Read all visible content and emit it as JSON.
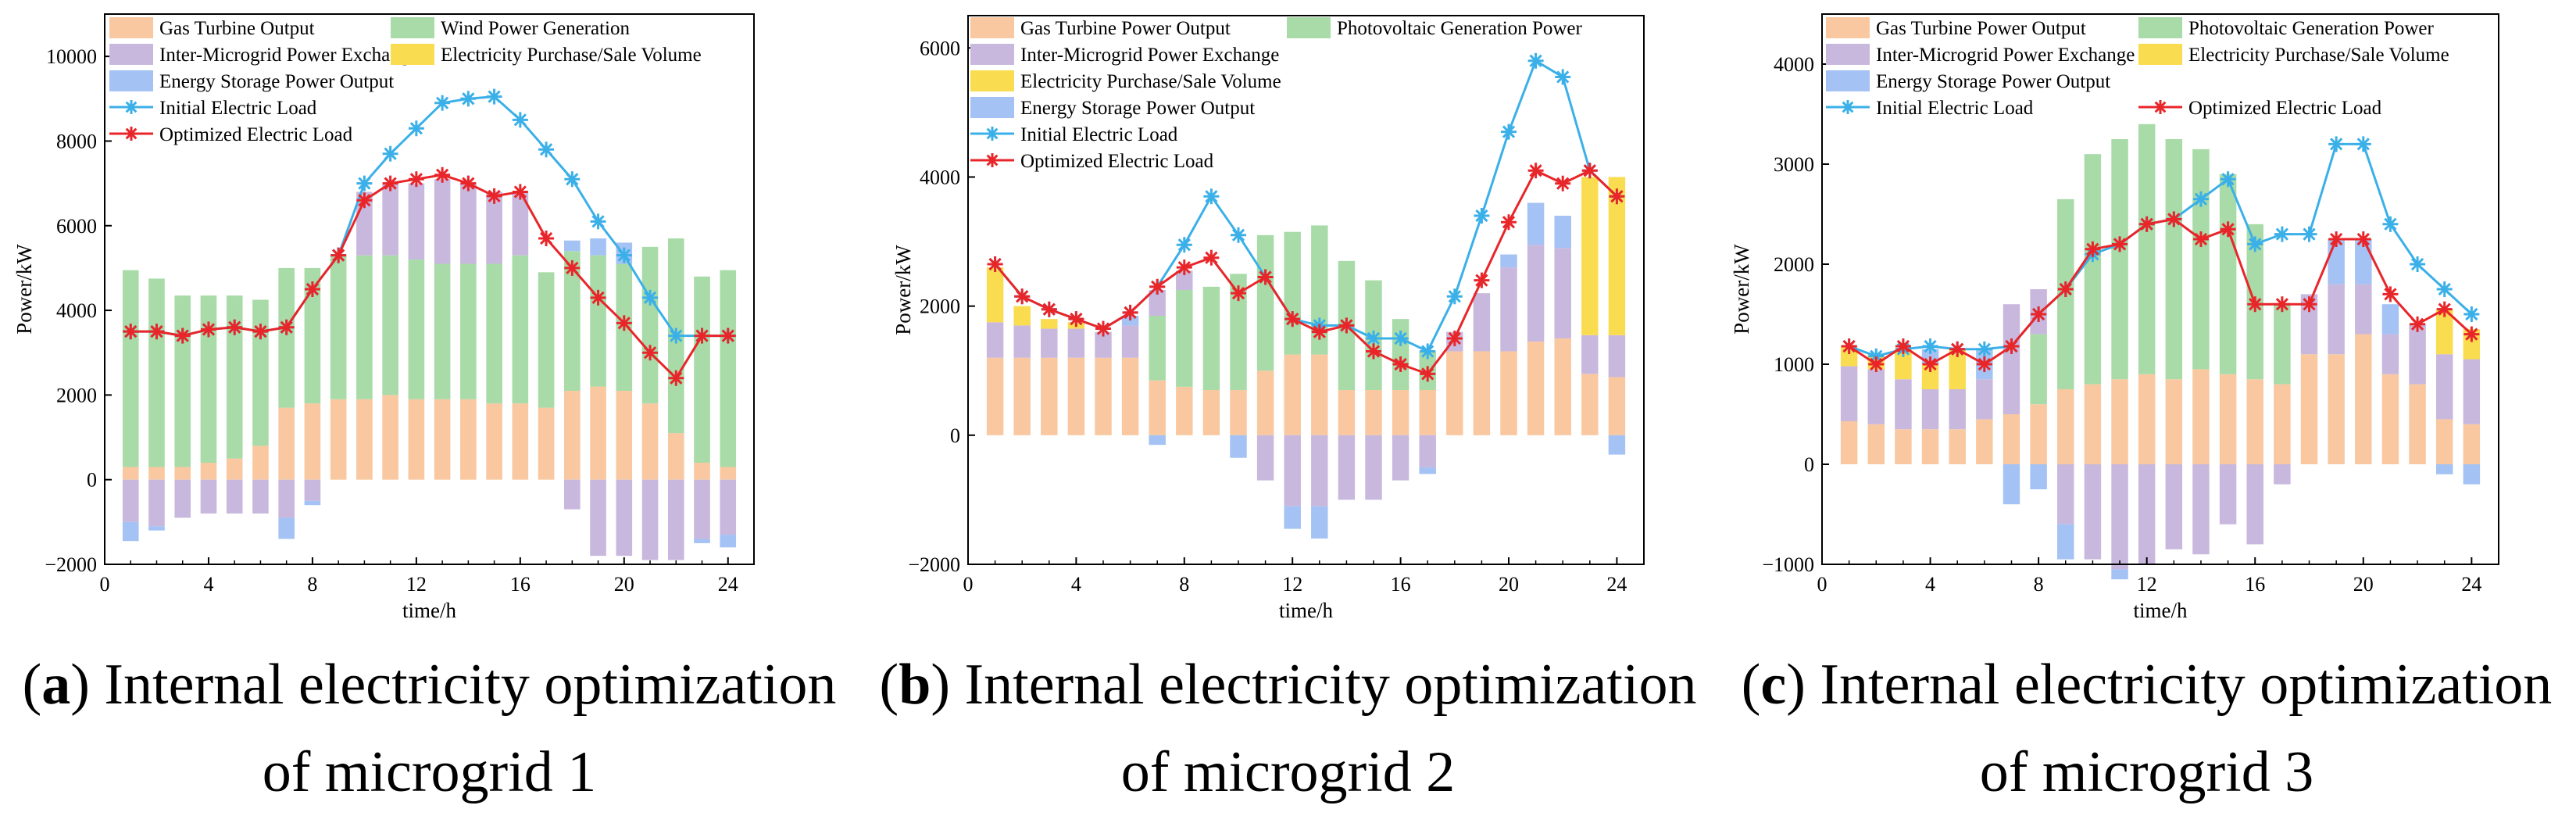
{
  "colors": {
    "gas": "#F9C8A0",
    "renewable": "#A8DBA8",
    "exchange": "#C9B8DD",
    "purchase": "#FADC50",
    "storage": "#A4C2F4",
    "initial_line": "#3BB0E8",
    "optimized_line": "#E8262A"
  },
  "icons": {
    "initial_marker": "asterisk-icon",
    "optimized_marker": "asterisk-icon"
  },
  "chart_data": [
    {
      "type": "bar",
      "stacked": true,
      "caption_letter": "a",
      "caption_text": ") Internal electricity optimization of microgrid 1",
      "xlabel": "time/h",
      "ylabel": "Power/kW",
      "xlim": [
        0,
        25
      ],
      "ylim": [
        -2000,
        11000
      ],
      "xticks": [
        0,
        4,
        8,
        12,
        16,
        20,
        24
      ],
      "yticks": [
        -2000,
        0,
        2000,
        4000,
        6000,
        8000,
        10000
      ],
      "legend_position": "top",
      "legend": [
        {
          "label": "Gas Turbine Output",
          "key": "gas"
        },
        {
          "label": "Wind Power Generation",
          "key": "renewable"
        },
        {
          "label": "Inter-Microgrid Power Exchange",
          "key": "exchange"
        },
        {
          "label": "Electricity Purchase/Sale Volume",
          "key": "purchase"
        },
        {
          "label": "Energy Storage Power Output",
          "key": "storage"
        },
        {
          "label": "Initial Electric Load",
          "key": "initial_line"
        },
        {
          "label": "Optimized Electric Load",
          "key": "optimized_line"
        }
      ],
      "x": [
        1,
        2,
        3,
        4,
        5,
        6,
        7,
        8,
        9,
        10,
        11,
        12,
        13,
        14,
        15,
        16,
        17,
        18,
        19,
        20,
        21,
        22,
        23,
        24
      ],
      "series": [
        {
          "name": "Gas Turbine Output",
          "key": "gas",
          "values": [
            300,
            300,
            300,
            400,
            500,
            800,
            1700,
            1800,
            1900,
            1900,
            2000,
            1900,
            1900,
            1900,
            1800,
            1800,
            1700,
            2100,
            2200,
            2100,
            1800,
            1100,
            400,
            300
          ]
        },
        {
          "name": "Wind Power Generation",
          "key": "renewable",
          "values": [
            4650,
            4450,
            4050,
            3950,
            3850,
            3450,
            3300,
            3200,
            3400,
            3400,
            3300,
            3300,
            3200,
            3200,
            3300,
            3500,
            3200,
            3300,
            3100,
            3000,
            3700,
            4600,
            4400,
            4650
          ]
        },
        {
          "name": "Inter-Microgrid Power Exchange",
          "key": "exchange",
          "values": [
            -1000,
            -1100,
            -900,
            -800,
            -800,
            -800,
            -900,
            -500,
            0,
            1500,
            1700,
            1800,
            2000,
            1900,
            1700,
            1500,
            0,
            -700,
            -1800,
            -1800,
            -1900,
            -1900,
            -1400,
            -1300
          ]
        },
        {
          "name": "Electricity Purchase/Sale Volume",
          "key": "purchase",
          "values": [
            0,
            0,
            0,
            0,
            0,
            0,
            0,
            0,
            0,
            0,
            0,
            0,
            0,
            0,
            0,
            0,
            0,
            0,
            0,
            0,
            0,
            0,
            0,
            0
          ]
        },
        {
          "name": "Energy Storage Power Output",
          "key": "storage",
          "values": [
            -450,
            -100,
            0,
            0,
            0,
            0,
            -500,
            -100,
            0,
            0,
            0,
            0,
            0,
            0,
            0,
            0,
            0,
            250,
            400,
            500,
            0,
            0,
            -100,
            -300
          ]
        }
      ],
      "lines": [
        {
          "name": "Initial Electric Load",
          "key": "initial_line",
          "values": [
            3500,
            3500,
            3400,
            3550,
            3600,
            3500,
            3600,
            4500,
            5300,
            7000,
            7700,
            8300,
            8900,
            9000,
            9050,
            8500,
            7800,
            7100,
            6100,
            5300,
            4300,
            3400,
            3400,
            3400
          ]
        },
        {
          "name": "Optimized Electric Load",
          "key": "optimized_line",
          "values": [
            3500,
            3500,
            3400,
            3550,
            3600,
            3500,
            3600,
            4500,
            5300,
            6600,
            7000,
            7100,
            7200,
            7000,
            6700,
            6800,
            5700,
            5000,
            4300,
            3700,
            3000,
            2400,
            3400,
            3400
          ]
        }
      ]
    },
    {
      "type": "bar",
      "stacked": true,
      "caption_letter": "b",
      "caption_text": ") Internal electricity optimization of microgrid 2",
      "xlabel": "time/h",
      "ylabel": "Power/kW",
      "xlim": [
        0,
        25
      ],
      "ylim": [
        -2000,
        6500
      ],
      "xticks": [
        0,
        4,
        8,
        12,
        16,
        20,
        24
      ],
      "yticks": [
        -2000,
        0,
        2000,
        4000,
        6000
      ],
      "legend_position": "top",
      "legend": [
        {
          "label": "Gas Turbine Power Output",
          "key": "gas"
        },
        {
          "label": "Photovoltaic Generation Power",
          "key": "renewable"
        },
        {
          "label": "Inter-Microgrid Power Exchange",
          "key": "exchange"
        },
        {
          "label": "Electricity Purchase/Sale Volume",
          "key": "purchase"
        },
        {
          "label": "Energy Storage Power Output",
          "key": "storage"
        },
        {
          "label": "Initial Electric Load",
          "key": "initial_line"
        },
        {
          "label": "Optimized Electric Load",
          "key": "optimized_line"
        }
      ],
      "x": [
        1,
        2,
        3,
        4,
        5,
        6,
        7,
        8,
        9,
        10,
        11,
        12,
        13,
        14,
        15,
        16,
        17,
        18,
        19,
        20,
        21,
        22,
        23,
        24
      ],
      "series": [
        {
          "name": "Gas Turbine Power Output",
          "key": "gas",
          "values": [
            1200,
            1200,
            1200,
            1200,
            1200,
            1200,
            850,
            750,
            700,
            700,
            1000,
            1250,
            1250,
            700,
            700,
            700,
            700,
            1300,
            1300,
            1300,
            1450,
            1500,
            950,
            900
          ]
        },
        {
          "name": "Photovoltaic Generation Power",
          "key": "renewable",
          "values": [
            0,
            0,
            0,
            0,
            0,
            0,
            1000,
            1500,
            1600,
            1800,
            2100,
            1900,
            2000,
            2000,
            1700,
            1100,
            600,
            0,
            0,
            0,
            0,
            0,
            0,
            0
          ]
        },
        {
          "name": "Inter-Microgrid Power Exchange",
          "key": "exchange",
          "values": [
            550,
            500,
            450,
            450,
            400,
            500,
            400,
            300,
            0,
            0,
            -700,
            -1100,
            -1100,
            -1000,
            -1000,
            -700,
            -500,
            300,
            900,
            1300,
            1500,
            1400,
            600,
            650
          ]
        },
        {
          "name": "Electricity Purchase/Sale Volume",
          "key": "purchase",
          "values": [
            850,
            300,
            150,
            100,
            0,
            0,
            0,
            0,
            0,
            0,
            0,
            0,
            0,
            0,
            0,
            0,
            0,
            0,
            0,
            0,
            0,
            0,
            2450,
            2450
          ]
        },
        {
          "name": "Energy Storage Power Output",
          "key": "storage",
          "values": [
            0,
            0,
            0,
            0,
            0,
            150,
            -150,
            0,
            0,
            -350,
            0,
            -350,
            -500,
            0,
            0,
            0,
            -100,
            0,
            0,
            200,
            650,
            500,
            0,
            -300
          ]
        }
      ],
      "lines": [
        {
          "name": "Initial Electric Load",
          "key": "initial_line",
          "values": [
            2650,
            2150,
            1950,
            1800,
            1650,
            1900,
            2300,
            2950,
            3700,
            3100,
            2450,
            1800,
            1700,
            1700,
            1500,
            1500,
            1300,
            2150,
            3400,
            4700,
            5800,
            5550,
            4100,
            3700
          ]
        },
        {
          "name": "Optimized Electric Load",
          "key": "optimized_line",
          "values": [
            2650,
            2150,
            1950,
            1800,
            1650,
            1900,
            2300,
            2600,
            2750,
            2200,
            2450,
            1800,
            1600,
            1700,
            1300,
            1100,
            950,
            1500,
            2400,
            3300,
            4100,
            3900,
            4100,
            3700
          ]
        }
      ]
    },
    {
      "type": "bar",
      "stacked": true,
      "caption_letter": "c",
      "caption_text": ") Internal electricity optimization of microgrid 3",
      "xlabel": "time/h",
      "ylabel": "Power/kW",
      "xlim": [
        0,
        25
      ],
      "ylim": [
        -1000,
        4500
      ],
      "xticks": [
        0,
        4,
        8,
        12,
        16,
        20,
        24
      ],
      "yticks": [
        -1000,
        0,
        1000,
        2000,
        3000,
        4000
      ],
      "legend_position": "top",
      "legend": [
        {
          "label": "Gas Turbine Power Output",
          "key": "gas"
        },
        {
          "label": "Photovoltaic Generation Power",
          "key": "renewable"
        },
        {
          "label": "Inter-Microgrid Power Exchange",
          "key": "exchange"
        },
        {
          "label": "Electricity Purchase/Sale Volume",
          "key": "purchase"
        },
        {
          "label": "Energy Storage Power Output",
          "key": "storage"
        },
        {
          "label": "Initial Electric Load",
          "key": "initial_line"
        },
        {
          "label": "Optimized Electric Load",
          "key": "optimized_line"
        }
      ],
      "x": [
        1,
        2,
        3,
        4,
        5,
        6,
        7,
        8,
        9,
        10,
        11,
        12,
        13,
        14,
        15,
        16,
        17,
        18,
        19,
        20,
        21,
        22,
        23,
        24
      ],
      "series": [
        {
          "name": "Gas Turbine Power Output",
          "key": "gas",
          "values": [
            430,
            400,
            350,
            350,
            350,
            450,
            500,
            600,
            750,
            800,
            850,
            900,
            850,
            950,
            900,
            850,
            800,
            1100,
            1100,
            1300,
            900,
            800,
            450,
            400
          ]
        },
        {
          "name": "Photovoltaic Generation Power",
          "key": "renewable",
          "values": [
            0,
            0,
            0,
            0,
            0,
            0,
            0,
            700,
            1900,
            2300,
            2400,
            2500,
            2400,
            2200,
            2000,
            1550,
            800,
            0,
            0,
            0,
            0,
            0,
            0,
            0
          ]
        },
        {
          "name": "Inter-Microgrid Power Exchange",
          "key": "exchange",
          "values": [
            550,
            550,
            500,
            400,
            400,
            400,
            1100,
            450,
            -600,
            -950,
            -1050,
            -1000,
            -850,
            -900,
            -600,
            -800,
            -200,
            600,
            700,
            500,
            400,
            600,
            650,
            650
          ]
        },
        {
          "name": "Electricity Purchase/Sale Volume",
          "key": "purchase",
          "values": [
            200,
            150,
            300,
            250,
            400,
            0,
            0,
            0,
            0,
            0,
            0,
            0,
            0,
            0,
            0,
            0,
            0,
            0,
            0,
            0,
            0,
            0,
            450,
            300
          ]
        },
        {
          "name": "Energy Storage Power Output",
          "key": "storage",
          "values": [
            0,
            0,
            0,
            150,
            0,
            300,
            -400,
            -250,
            -350,
            0,
            -100,
            0,
            0,
            0,
            0,
            0,
            0,
            0,
            450,
            450,
            300,
            0,
            -100,
            -200
          ]
        }
      ],
      "lines": [
        {
          "name": "Initial Electric Load",
          "key": "initial_line",
          "values": [
            1180,
            1080,
            1150,
            1180,
            1150,
            1150,
            1180,
            1500,
            1750,
            2100,
            2200,
            2400,
            2450,
            2650,
            2850,
            2200,
            2300,
            2300,
            3200,
            3200,
            2400,
            2000,
            1750,
            1500
          ]
        },
        {
          "name": "Optimized Electric Load",
          "key": "optimized_line",
          "values": [
            1180,
            1000,
            1180,
            1000,
            1150,
            1000,
            1180,
            1500,
            1750,
            2150,
            2200,
            2400,
            2450,
            2250,
            2350,
            1600,
            1600,
            1600,
            2250,
            2250,
            1700,
            1400,
            1550,
            1300
          ]
        }
      ]
    }
  ]
}
